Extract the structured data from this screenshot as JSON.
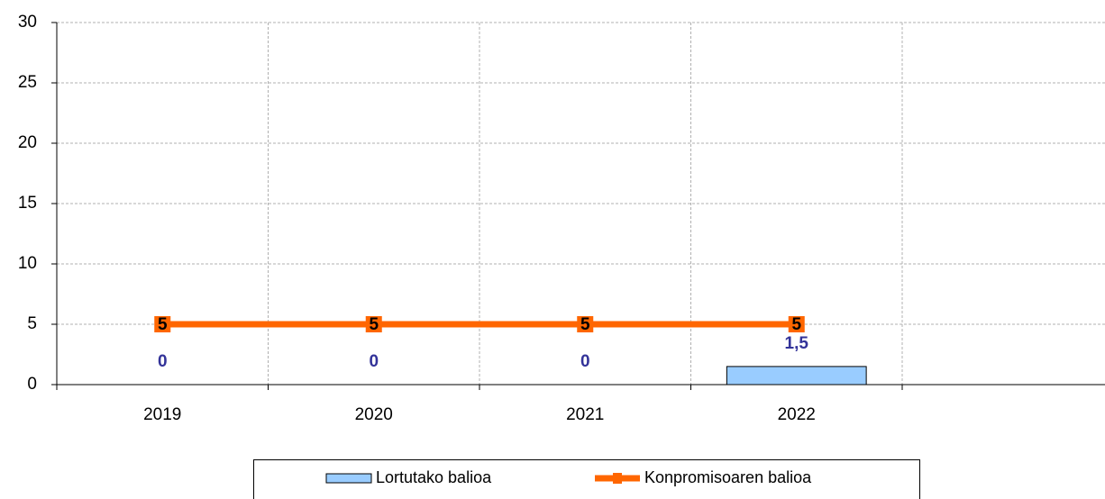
{
  "chart_data": {
    "type": "combo",
    "categories": [
      "2019",
      "2020",
      "2021",
      "2022",
      null
    ],
    "series": [
      {
        "name": "Lortutako balioa",
        "type": "bar",
        "color": "#99ccff",
        "values": [
          0,
          0,
          0,
          1.5,
          null
        ],
        "value_labels": [
          "0",
          "0",
          "0",
          "1,5",
          null
        ],
        "label_color": "#333399"
      },
      {
        "name": "Konpromisoaren balioa",
        "type": "line",
        "color": "#ff6600",
        "values": [
          5,
          5,
          5,
          5,
          null
        ]
      }
    ],
    "ylim": [
      0,
      30
    ],
    "yticks": [
      0,
      5,
      10,
      15,
      20,
      25,
      30
    ],
    "grid": true,
    "legend": "bottom"
  }
}
